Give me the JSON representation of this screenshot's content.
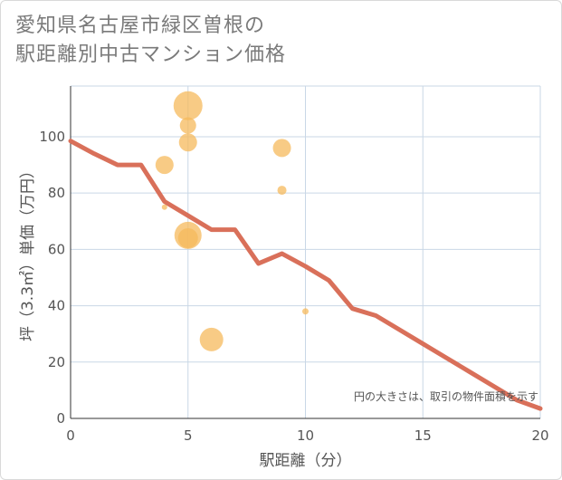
{
  "title": {
    "line1": "愛知県名古屋市緑区曽根の",
    "line2": "駅距離別中古マンション価格"
  },
  "chart_data": {
    "type": "scatter+line",
    "xlabel": "駅距離（分）",
    "ylabel": "坪（3.3㎡）単価（万円）",
    "xlim": [
      0,
      20
    ],
    "ylim": [
      0,
      118
    ],
    "x_ticks": [
      0,
      5,
      10,
      15,
      20
    ],
    "y_ticks": [
      0,
      20,
      40,
      60,
      80,
      100
    ],
    "grid": true,
    "note": "円の大きさは、取引の物件面積を示す",
    "line_series": {
      "name": "average",
      "color": "#d9705a",
      "x": [
        0,
        1,
        2,
        3,
        4,
        5,
        6,
        7,
        8,
        9,
        10,
        11,
        12,
        13,
        14,
        15,
        16,
        17,
        18,
        19,
        20
      ],
      "y": [
        98.5,
        94,
        90,
        90,
        77,
        72,
        67,
        67,
        55,
        58.5,
        54,
        49,
        39,
        36.5,
        31.5,
        26.5,
        21.5,
        16.5,
        11.5,
        6.5,
        3.5
      ]
    },
    "bubble_series": {
      "name": "transactions",
      "color": "#f5b95c",
      "points": [
        {
          "x": 5,
          "y": 111,
          "size": 16
        },
        {
          "x": 5,
          "y": 104,
          "size": 9
        },
        {
          "x": 5,
          "y": 98,
          "size": 10
        },
        {
          "x": 4,
          "y": 90,
          "size": 10
        },
        {
          "x": 4,
          "y": 75,
          "size": 3
        },
        {
          "x": 5,
          "y": 65,
          "size": 15
        },
        {
          "x": 5,
          "y": 64,
          "size": 11
        },
        {
          "x": 6,
          "y": 28,
          "size": 13
        },
        {
          "x": 9,
          "y": 96,
          "size": 10
        },
        {
          "x": 9,
          "y": 81,
          "size": 5
        },
        {
          "x": 10,
          "y": 38,
          "size": 3.5
        }
      ]
    }
  }
}
